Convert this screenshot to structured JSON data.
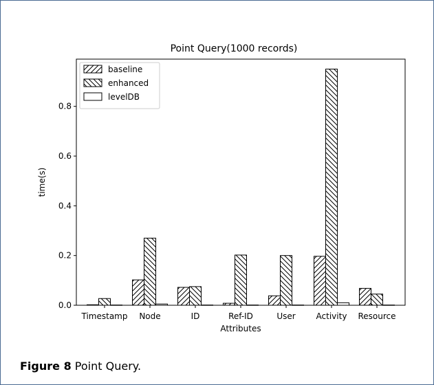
{
  "figure": {
    "caption_label": "Figure 8",
    "caption_text": "Point Query."
  },
  "chart_data": {
    "type": "bar",
    "title": "Point Query(1000 records)",
    "xlabel": "Attributes",
    "ylabel": "time(s)",
    "categories": [
      "Timestamp",
      "Node",
      "ID",
      "Ref-ID",
      "User",
      "Activity",
      "Resource"
    ],
    "series": [
      {
        "name": "baseline",
        "hatch": "forward-diagonal",
        "values": [
          0.002,
          0.102,
          0.072,
          0.008,
          0.038,
          0.197,
          0.068
        ]
      },
      {
        "name": "enhanced",
        "hatch": "back-diagonal",
        "values": [
          0.027,
          0.27,
          0.075,
          0.202,
          0.2,
          0.95,
          0.045
        ]
      },
      {
        "name": "levelDB",
        "hatch": "none",
        "values": [
          0.001,
          0.005,
          0.001,
          0.001,
          0.001,
          0.01,
          0.001
        ]
      }
    ],
    "ylim": [
      0,
      0.99
    ],
    "yticks": [
      0.0,
      0.2,
      0.4,
      0.6,
      0.8
    ],
    "ytick_labels": [
      "0.0",
      "0.2",
      "0.4",
      "0.6",
      "0.8"
    ],
    "legend_position": "top-left",
    "grid": false
  }
}
